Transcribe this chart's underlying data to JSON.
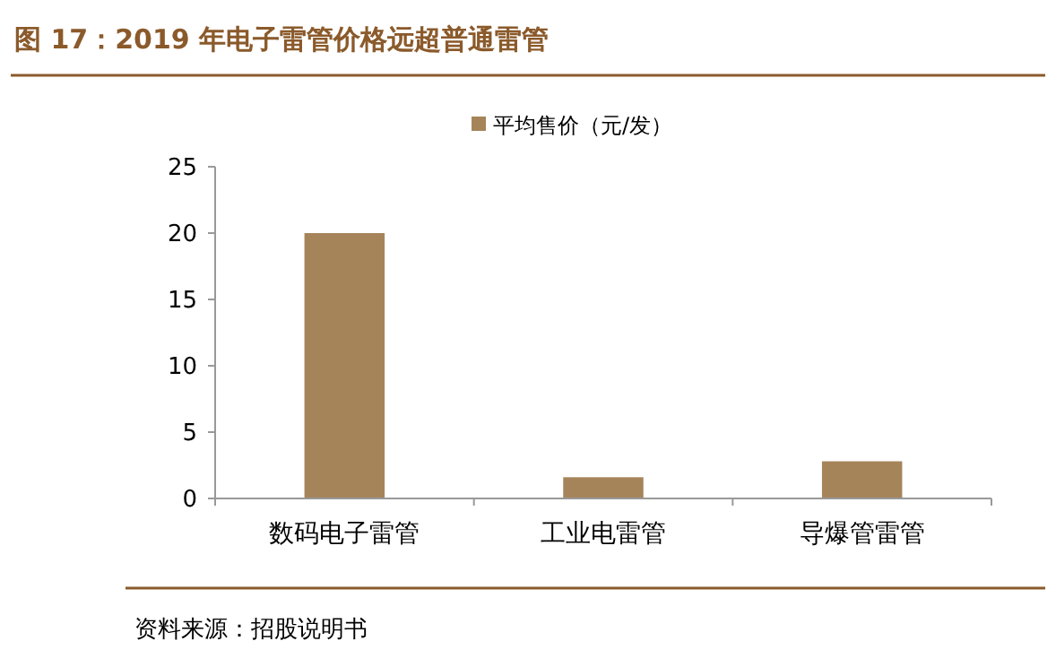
{
  "chart_data": {
    "type": "bar",
    "title": "图 17：2019 年电子雷管价格远超普通雷管",
    "categories": [
      "数码电子雷管",
      "工业电雷管",
      "导爆管雷管"
    ],
    "series": [
      {
        "name": "平均售价（元/发）",
        "color": "#a6845a",
        "values": [
          20,
          1.6,
          2.8
        ]
      }
    ],
    "ylim": [
      0,
      25
    ],
    "yticks": [
      0,
      5,
      10,
      15,
      20,
      25
    ],
    "grid": false,
    "legend": "top",
    "annotations": [
      "资料来源：招股说明书"
    ]
  }
}
